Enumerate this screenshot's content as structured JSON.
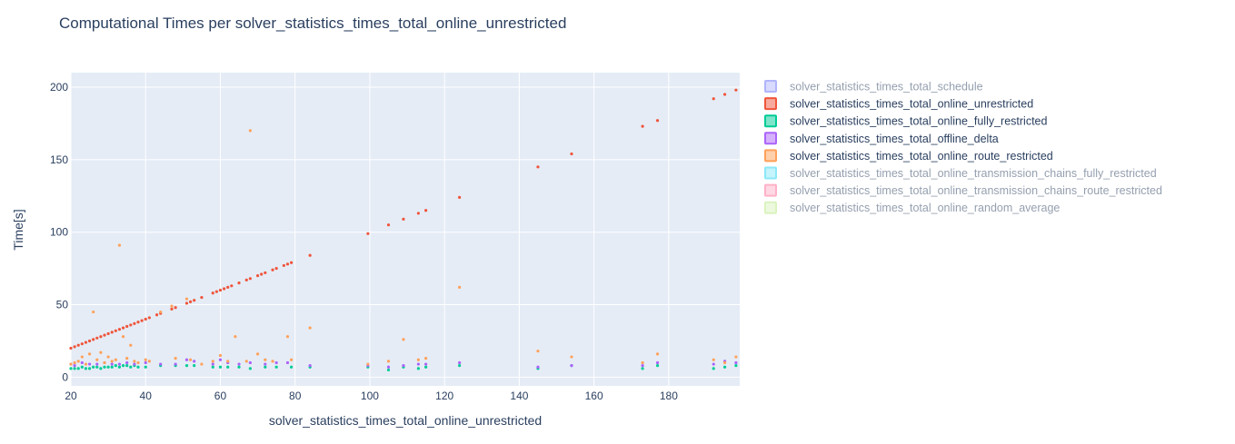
{
  "chart_data": {
    "type": "scatter",
    "title": "Computational Times per solver_statistics_times_total_online_unrestricted",
    "xlabel": "solver_statistics_times_total_online_unrestricted",
    "ylabel": "Time[s]",
    "xlim": [
      20,
      199
    ],
    "ylim": [
      -6,
      210
    ],
    "x_ticks": [
      20,
      40,
      60,
      80,
      100,
      120,
      140,
      160,
      180
    ],
    "y_ticks": [
      0,
      50,
      100,
      150,
      200
    ],
    "grid": true,
    "legend_position": "right",
    "series": [
      {
        "name": "solver_statistics_times_total_schedule",
        "color": "#636efa",
        "visible": false,
        "points": []
      },
      {
        "name": "solver_statistics_times_total_online_unrestricted",
        "color": "#ef553b",
        "visible": true,
        "points": [
          [
            20,
            20
          ],
          [
            21,
            21
          ],
          [
            22,
            22
          ],
          [
            23,
            23
          ],
          [
            24,
            24
          ],
          [
            25,
            25
          ],
          [
            26,
            26
          ],
          [
            27,
            27
          ],
          [
            28,
            28
          ],
          [
            29,
            29
          ],
          [
            30,
            30
          ],
          [
            31,
            31
          ],
          [
            32,
            32
          ],
          [
            33,
            33
          ],
          [
            34,
            34
          ],
          [
            35,
            35
          ],
          [
            36,
            36
          ],
          [
            37,
            37
          ],
          [
            38,
            38
          ],
          [
            39,
            39
          ],
          [
            40,
            40
          ],
          [
            41,
            41
          ],
          [
            43,
            43
          ],
          [
            44,
            44
          ],
          [
            47,
            47
          ],
          [
            48,
            48
          ],
          [
            51,
            51
          ],
          [
            52,
            52
          ],
          [
            53,
            53
          ],
          [
            55,
            55
          ],
          [
            58,
            58
          ],
          [
            59,
            59
          ],
          [
            60,
            60
          ],
          [
            61,
            61
          ],
          [
            62,
            62
          ],
          [
            63,
            63
          ],
          [
            65,
            65
          ],
          [
            67,
            67
          ],
          [
            68,
            68
          ],
          [
            70,
            70
          ],
          [
            71,
            71
          ],
          [
            72,
            72
          ],
          [
            74,
            74
          ],
          [
            75,
            75
          ],
          [
            77,
            77
          ],
          [
            78,
            78
          ],
          [
            79,
            79
          ],
          [
            84,
            84
          ],
          [
            99.5,
            99
          ],
          [
            105,
            105
          ],
          [
            109,
            109
          ],
          [
            113,
            113
          ],
          [
            115,
            115
          ],
          [
            124,
            124
          ],
          [
            145,
            145
          ],
          [
            154,
            154
          ],
          [
            173,
            173
          ],
          [
            177,
            177
          ],
          [
            192,
            192
          ],
          [
            195,
            195
          ],
          [
            198,
            198
          ]
        ]
      },
      {
        "name": "solver_statistics_times_total_online_fully_restricted",
        "color": "#00cc96",
        "visible": true,
        "points": [
          [
            20,
            6
          ],
          [
            21,
            6
          ],
          [
            22,
            6
          ],
          [
            23,
            7
          ],
          [
            24,
            6
          ],
          [
            25,
            6
          ],
          [
            26,
            7
          ],
          [
            27,
            7
          ],
          [
            28,
            6
          ],
          [
            29,
            7
          ],
          [
            30,
            7
          ],
          [
            31,
            7
          ],
          [
            32,
            8
          ],
          [
            33,
            7
          ],
          [
            34,
            8
          ],
          [
            35,
            8
          ],
          [
            36,
            7
          ],
          [
            37,
            8
          ],
          [
            38,
            7
          ],
          [
            40,
            7
          ],
          [
            44,
            8
          ],
          [
            48,
            8
          ],
          [
            51,
            8
          ],
          [
            53,
            8
          ],
          [
            58,
            7
          ],
          [
            60,
            7
          ],
          [
            62,
            7
          ],
          [
            65,
            7
          ],
          [
            68,
            6
          ],
          [
            72,
            7
          ],
          [
            75,
            7
          ],
          [
            79,
            7
          ],
          [
            84,
            7
          ],
          [
            99.5,
            7
          ],
          [
            105,
            5
          ],
          [
            109,
            7
          ],
          [
            113,
            6
          ],
          [
            115,
            7
          ],
          [
            124,
            8
          ],
          [
            145,
            6
          ],
          [
            154,
            8
          ],
          [
            173,
            6
          ],
          [
            177,
            8
          ],
          [
            192,
            6
          ],
          [
            195,
            7
          ],
          [
            198,
            8
          ]
        ]
      },
      {
        "name": "solver_statistics_times_total_offline_delta",
        "color": "#ab63fa",
        "visible": true,
        "points": [
          [
            20,
            9
          ],
          [
            21,
            8
          ],
          [
            23,
            10
          ],
          [
            25,
            9
          ],
          [
            27,
            9
          ],
          [
            29,
            10
          ],
          [
            31,
            9
          ],
          [
            33,
            9
          ],
          [
            35,
            10
          ],
          [
            37,
            9
          ],
          [
            40,
            10
          ],
          [
            44,
            9
          ],
          [
            48,
            9
          ],
          [
            51,
            12
          ],
          [
            53,
            11
          ],
          [
            58,
            9
          ],
          [
            60,
            12
          ],
          [
            62,
            10
          ],
          [
            65,
            9
          ],
          [
            68,
            10
          ],
          [
            72,
            9
          ],
          [
            75,
            10
          ],
          [
            78,
            10
          ],
          [
            84,
            8
          ],
          [
            99.5,
            8
          ],
          [
            105,
            7
          ],
          [
            109,
            8
          ],
          [
            113,
            9
          ],
          [
            115,
            9
          ],
          [
            124,
            10
          ],
          [
            145,
            7
          ],
          [
            154,
            8
          ],
          [
            173,
            8
          ],
          [
            177,
            10
          ],
          [
            192,
            9
          ],
          [
            195,
            11
          ],
          [
            198,
            10
          ]
        ]
      },
      {
        "name": "solver_statistics_times_total_online_route_restricted",
        "color": "#ffa15a",
        "visible": true,
        "points": [
          [
            20,
            9
          ],
          [
            21,
            10
          ],
          [
            22,
            11
          ],
          [
            23,
            14
          ],
          [
            24,
            9
          ],
          [
            25,
            16
          ],
          [
            26,
            45
          ],
          [
            27,
            12
          ],
          [
            28,
            17
          ],
          [
            29,
            10
          ],
          [
            30,
            14
          ],
          [
            31,
            11
          ],
          [
            32,
            12
          ],
          [
            33,
            91
          ],
          [
            34,
            28
          ],
          [
            35,
            13
          ],
          [
            36,
            22
          ],
          [
            37,
            11
          ],
          [
            38,
            10
          ],
          [
            40,
            12
          ],
          [
            41,
            11
          ],
          [
            44,
            45
          ],
          [
            47,
            49
          ],
          [
            48,
            13
          ],
          [
            51,
            54
          ],
          [
            52,
            12
          ],
          [
            55,
            9
          ],
          [
            58,
            11
          ],
          [
            60,
            15
          ],
          [
            62,
            11
          ],
          [
            64,
            28
          ],
          [
            67,
            11
          ],
          [
            68,
            170
          ],
          [
            70,
            16
          ],
          [
            72,
            12
          ],
          [
            74,
            11
          ],
          [
            78,
            28
          ],
          [
            79,
            12
          ],
          [
            84,
            34
          ],
          [
            99.5,
            9
          ],
          [
            105,
            11
          ],
          [
            109,
            26
          ],
          [
            113,
            12
          ],
          [
            115,
            13
          ],
          [
            124,
            62
          ],
          [
            145,
            18
          ],
          [
            154,
            14
          ],
          [
            173,
            10
          ],
          [
            177,
            16
          ],
          [
            192,
            12
          ],
          [
            195,
            10
          ],
          [
            198,
            14
          ]
        ]
      },
      {
        "name": "solver_statistics_times_total_online_transmission_chains_fully_restricted",
        "color": "#19d3f3",
        "visible": false,
        "points": []
      },
      {
        "name": "solver_statistics_times_total_online_transmission_chains_route_restricted",
        "color": "#ff6692",
        "visible": false,
        "points": []
      },
      {
        "name": "solver_statistics_times_total_online_random_average",
        "color": "#b6e880",
        "visible": false,
        "points": []
      }
    ]
  }
}
